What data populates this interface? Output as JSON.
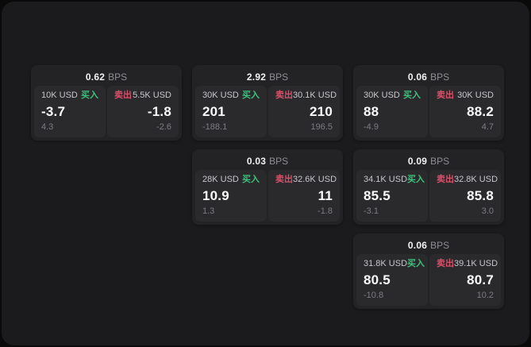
{
  "labels": {
    "bps_unit": "BPS",
    "buy": "买入",
    "sell": "卖出"
  },
  "colors": {
    "page_bg": "#0a0a0b",
    "panel_bg": "#1b1b1d",
    "card_bg": "#232325",
    "tile_bg": "#2a2a2d",
    "buy_accent": "#3fc07c",
    "sell_accent": "#d94f68",
    "price_text": "#fafafa",
    "muted_text": "#7c7c82"
  },
  "cards": [
    {
      "bps": "0.62",
      "buy": {
        "amount": "10K USD",
        "price": "-3.7",
        "delta": "4.3"
      },
      "sell": {
        "amount": "5.5K USD",
        "price": "-1.8",
        "delta": "-2.6"
      }
    },
    {
      "bps": "2.92",
      "buy": {
        "amount": "30K USD",
        "price": "201",
        "delta": "-188.1"
      },
      "sell": {
        "amount": "30.1K USD",
        "price": "210",
        "delta": "196.5"
      }
    },
    {
      "bps": "0.06",
      "buy": {
        "amount": "30K USD",
        "price": "88",
        "delta": "-4.9"
      },
      "sell": {
        "amount": "30K USD",
        "price": "88.2",
        "delta": "4.7"
      }
    },
    {
      "bps": "0.03",
      "buy": {
        "amount": "28K USD",
        "price": "10.9",
        "delta": "1.3"
      },
      "sell": {
        "amount": "32.6K USD",
        "price": "11",
        "delta": "-1.8"
      }
    },
    {
      "bps": "0.09",
      "buy": {
        "amount": "34.1K USD",
        "price": "85.5",
        "delta": "-3.1"
      },
      "sell": {
        "amount": "32.8K USD",
        "price": "85.8",
        "delta": "3.0"
      }
    },
    {
      "bps": "0.06",
      "buy": {
        "amount": "31.8K USD",
        "price": "80.5",
        "delta": "-10.8"
      },
      "sell": {
        "amount": "39.1K USD",
        "price": "80.7",
        "delta": "10.2"
      }
    }
  ]
}
